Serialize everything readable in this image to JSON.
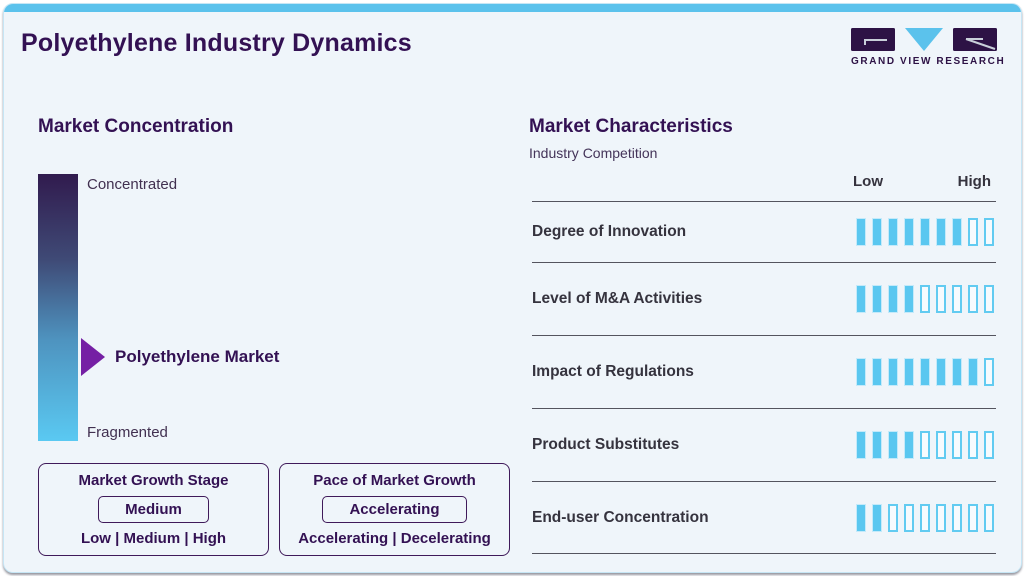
{
  "header": {
    "title": "Polyethylene Industry Dynamics",
    "logo_text": "GRAND VIEW RESEARCH"
  },
  "market_concentration": {
    "title": "Market Concentration",
    "top_label": "Concentrated",
    "bottom_label": "Fragmented",
    "marker_label": "Polyethylene Market",
    "marker_position_pct": 68.5
  },
  "growth_stage_box": {
    "title": "Market Growth Stage",
    "selected": "Medium",
    "options": "Low | Medium | High"
  },
  "pace_box": {
    "title": "Pace of Market Growth",
    "selected": "Accelerating",
    "options": "Accelerating | Decelerating"
  },
  "characteristics": {
    "title": "Market Characteristics",
    "subtitle": "Industry Competition",
    "low_label": "Low",
    "high_label": "High",
    "segments_total": 9,
    "rows": [
      {
        "label": "Degree of Innovation",
        "filled": 7
      },
      {
        "label": "Level of M&A Activities",
        "filled": 4
      },
      {
        "label": "Impact of Regulations",
        "filled": 8
      },
      {
        "label": "Product Substitutes",
        "filled": 4
      },
      {
        "label": "End-user Concentration",
        "filled": 2
      }
    ]
  },
  "colors": {
    "accent_blue": "#5bc2ec",
    "bar_fill": "#5ac7f0",
    "dark_purple": "#331153",
    "arrow_purple": "#7520a4",
    "gradient_top": "#311b4e",
    "gradient_bottom": "#5ac9f2",
    "label_gray": "#35333e"
  },
  "chart_data": {
    "type": "bar",
    "title": "Market Characteristics - Industry Competition",
    "categories": [
      "Degree of Innovation",
      "Level of M&A Activities",
      "Impact of Regulations",
      "Product Substitutes",
      "End-user Concentration"
    ],
    "values": [
      7,
      4,
      8,
      4,
      2
    ],
    "scale": {
      "min": 0,
      "max": 9,
      "low_label": "Low",
      "high_label": "High"
    },
    "legend_position": "none",
    "notes": "Each category rated as filled segments out of 9 from Low to High; market concentration gradient marker for Polyethylene Market at ~68% toward Fragmented"
  }
}
